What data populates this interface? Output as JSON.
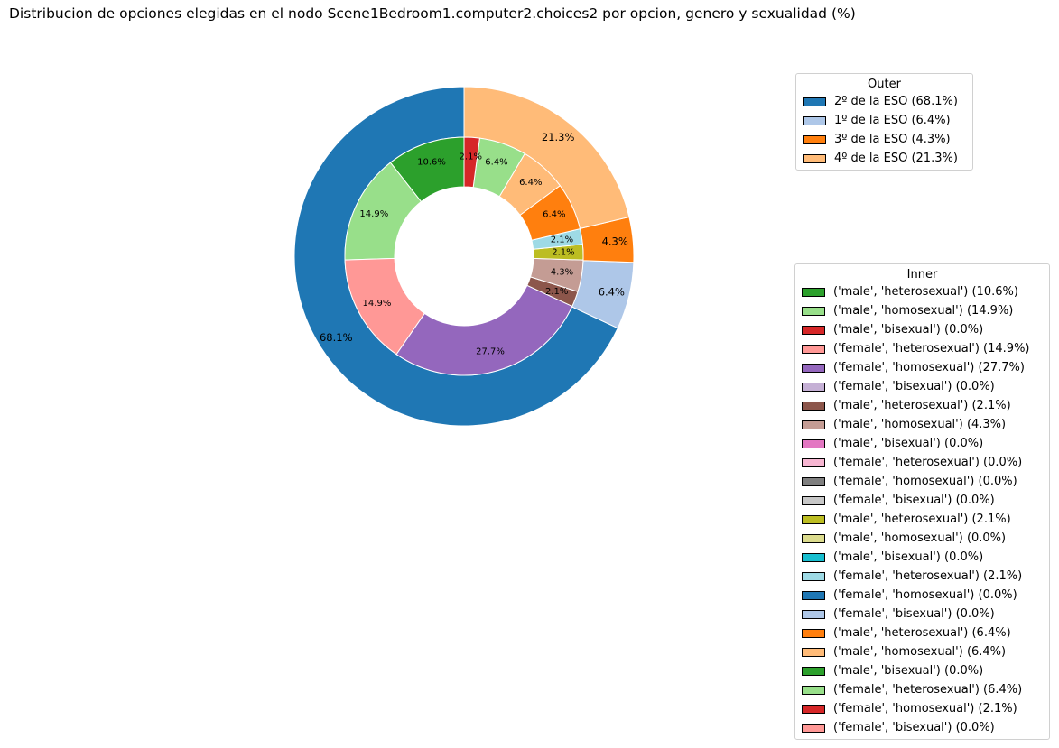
{
  "title": "Distribucion de opciones elegidas en el nodo Scene1Bedroom1.computer2.choices2 por opcion, genero y sexualidad (%)",
  "legend_outer": {
    "title": "Outer",
    "items": [
      {
        "label": "2º de la ESO (68.1%)",
        "color": "#1f77b4"
      },
      {
        "label": "1º de la ESO (6.4%)",
        "color": "#aec7e8"
      },
      {
        "label": "3º de la ESO (4.3%)",
        "color": "#ff7f0e"
      },
      {
        "label": "4º de la ESO (21.3%)",
        "color": "#ffbb78"
      }
    ]
  },
  "legend_inner": {
    "title": "Inner",
    "items": [
      {
        "label": "('male', 'heterosexual') (10.6%)",
        "color": "#2ca02c"
      },
      {
        "label": "('male', 'homosexual') (14.9%)",
        "color": "#98df8a"
      },
      {
        "label": "('male', 'bisexual') (0.0%)",
        "color": "#d62728"
      },
      {
        "label": "('female', 'heterosexual') (14.9%)",
        "color": "#ff9896"
      },
      {
        "label": "('female', 'homosexual') (27.7%)",
        "color": "#9467bd"
      },
      {
        "label": "('female', 'bisexual') (0.0%)",
        "color": "#c5b0d5"
      },
      {
        "label": "('male', 'heterosexual') (2.1%)",
        "color": "#8c564b"
      },
      {
        "label": "('male', 'homosexual') (4.3%)",
        "color": "#c49c94"
      },
      {
        "label": "('male', 'bisexual') (0.0%)",
        "color": "#e377c2"
      },
      {
        "label": "('female', 'heterosexual') (0.0%)",
        "color": "#f7b6d2"
      },
      {
        "label": "('female', 'homosexual') (0.0%)",
        "color": "#7f7f7f"
      },
      {
        "label": "('female', 'bisexual') (0.0%)",
        "color": "#c7c7c7"
      },
      {
        "label": "('male', 'heterosexual') (2.1%)",
        "color": "#bcbd22"
      },
      {
        "label": "('male', 'homosexual') (0.0%)",
        "color": "#dbdb8d"
      },
      {
        "label": "('male', 'bisexual') (0.0%)",
        "color": "#17becf"
      },
      {
        "label": "('female', 'heterosexual') (2.1%)",
        "color": "#9edae5"
      },
      {
        "label": "('female', 'homosexual') (0.0%)",
        "color": "#1f77b4"
      },
      {
        "label": "('female', 'bisexual') (0.0%)",
        "color": "#aec7e8"
      },
      {
        "label": "('male', 'heterosexual') (6.4%)",
        "color": "#ff7f0e"
      },
      {
        "label": "('male', 'homosexual') (6.4%)",
        "color": "#ffbb78"
      },
      {
        "label": "('male', 'bisexual') (0.0%)",
        "color": "#2ca02c"
      },
      {
        "label": "('female', 'heterosexual') (6.4%)",
        "color": "#98df8a"
      },
      {
        "label": "('female', 'homosexual') (2.1%)",
        "color": "#d62728"
      },
      {
        "label": "('female', 'bisexual') (0.0%)",
        "color": "#ff9896"
      }
    ]
  },
  "chart_data": {
    "type": "pie",
    "title": "Distribucion de opciones elegidas en el nodo Scene1Bedroom1.computer2.choices2 por opcion, genero y sexualidad (%)",
    "outer": {
      "categories": [
        "2º de la ESO",
        "1º de la ESO",
        "3º de la ESO",
        "4º de la ESO"
      ],
      "values": [
        68.1,
        6.4,
        4.3,
        21.3
      ],
      "labels": [
        "68.1%",
        "6.4%",
        "4.3%",
        "21.3%"
      ],
      "colors": [
        "#1f77b4",
        "#aec7e8",
        "#ff7f0e",
        "#ffbb78"
      ]
    },
    "inner": {
      "values": [
        10.6,
        14.9,
        0.0,
        14.9,
        27.7,
        0.0,
        2.1,
        4.3,
        0.0,
        0.0,
        0.0,
        0.0,
        2.1,
        0.0,
        0.0,
        2.1,
        0.0,
        0.0,
        6.4,
        6.4,
        0.0,
        6.4,
        2.1,
        0.0
      ],
      "labels": [
        "10.6%",
        "14.9%",
        "",
        "14.9%",
        "27.7%",
        "",
        "2.1%",
        "4.3%",
        "",
        "",
        "",
        "",
        "2.1%",
        "",
        "",
        "2.1%",
        "",
        "",
        "6.4%",
        "6.4%",
        "",
        "6.4%",
        "2.1%",
        ""
      ],
      "colors": [
        "#2ca02c",
        "#98df8a",
        "#d62728",
        "#ff9896",
        "#9467bd",
        "#c5b0d5",
        "#8c564b",
        "#c49c94",
        "#e377c2",
        "#f7b6d2",
        "#7f7f7f",
        "#c7c7c7",
        "#bcbd22",
        "#dbdb8d",
        "#17becf",
        "#9edae5",
        "#1f77b4",
        "#aec7e8",
        "#ff7f0e",
        "#ffbb78",
        "#2ca02c",
        "#98df8a",
        "#d62728",
        "#ff9896"
      ]
    },
    "start_angle": 90,
    "direction": "counterclockwise",
    "legend_position": "right"
  }
}
